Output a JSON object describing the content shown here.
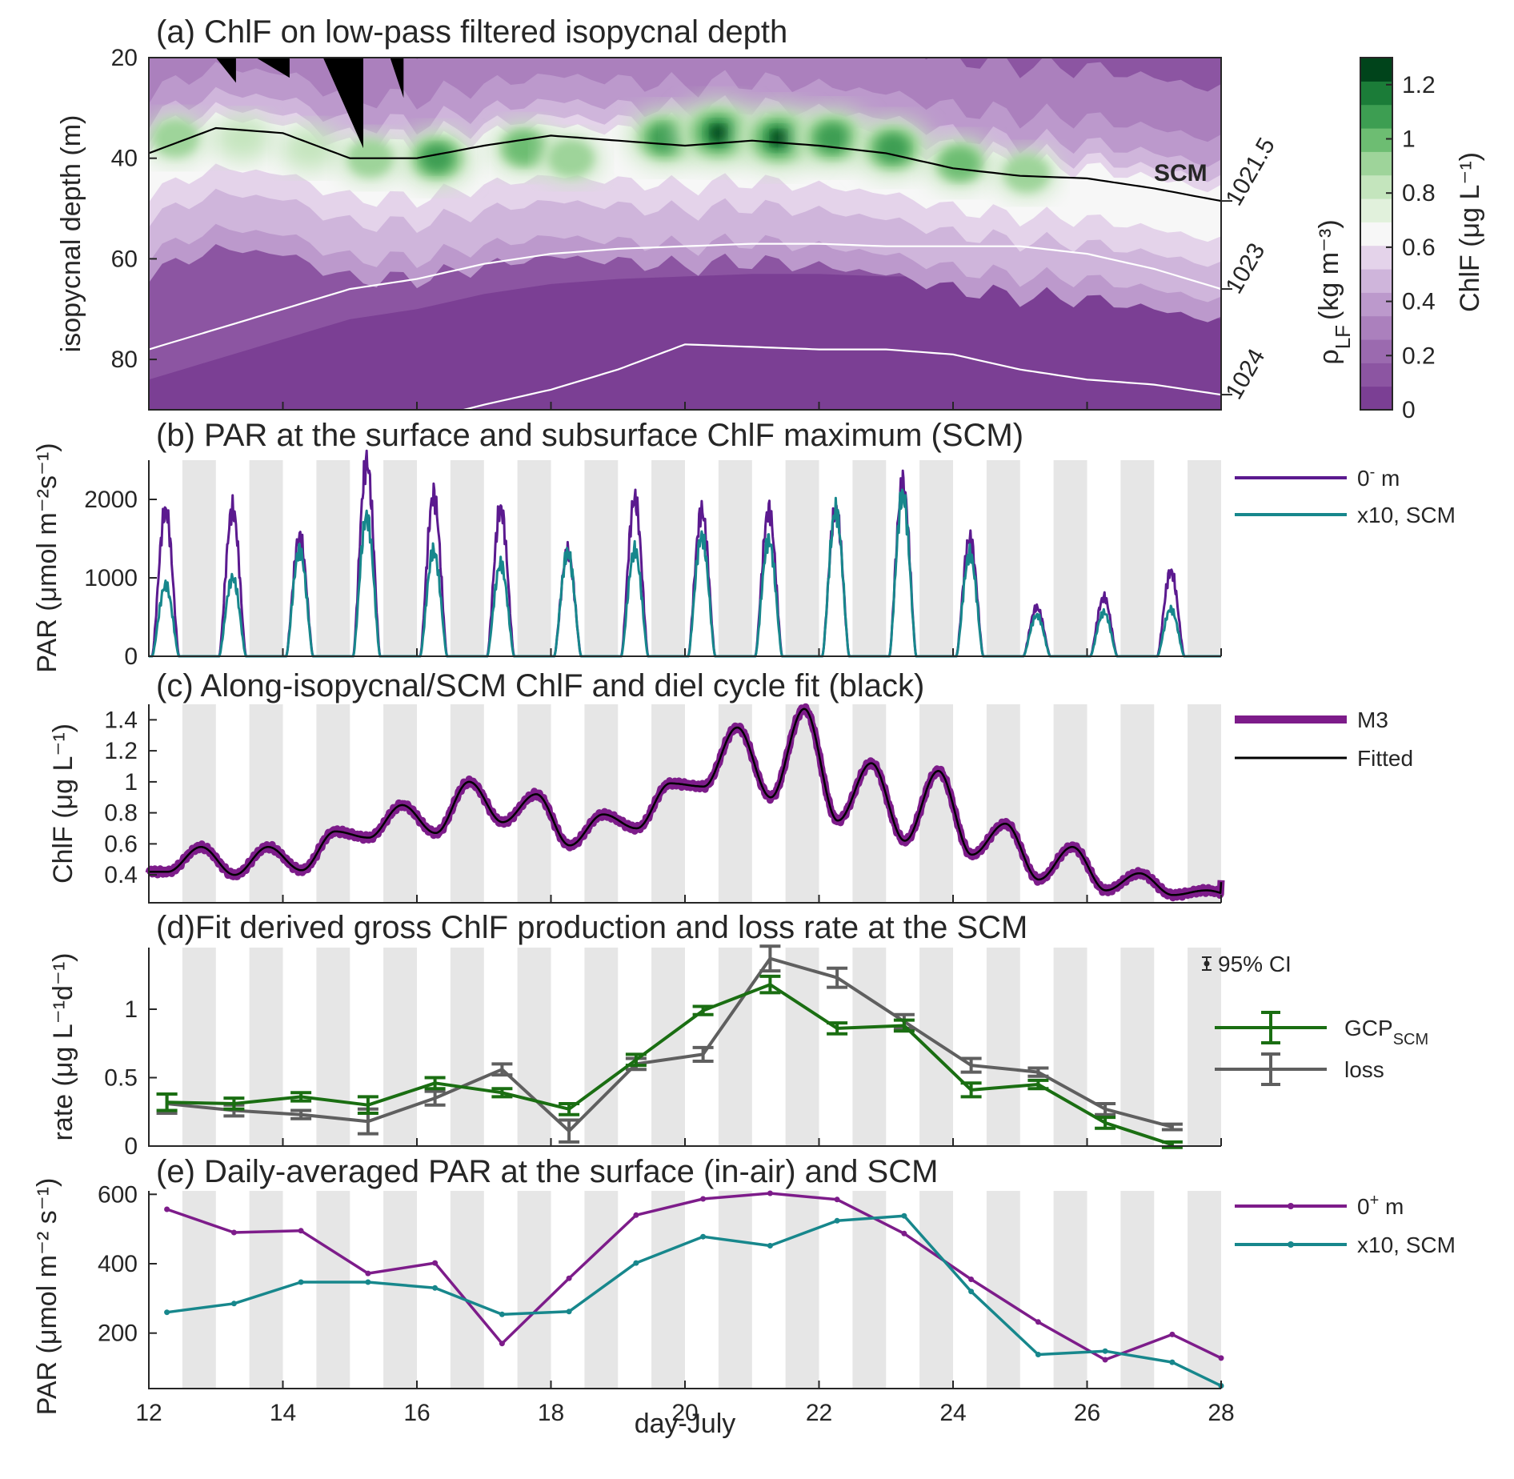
{
  "chart_data": [
    {
      "panel": "a",
      "type": "heatmap",
      "title": "(a) ChlF on low-pass filtered isopycnal depth",
      "ylabel": "isopycnal depth (m)",
      "ylim": [
        90,
        20
      ],
      "yticks": [
        "20",
        "40",
        "60",
        "80"
      ],
      "xlim": [
        12,
        28
      ],
      "colorbar": {
        "label": "ChlF (μg L⁻¹)",
        "ticks": [
          "0",
          "0.2",
          "0.4",
          "0.6",
          "0.8",
          "1",
          "1.2"
        ],
        "range": [
          0,
          1.3
        ],
        "levels": [
          "#7b3f94",
          "#8c55a2",
          "#9b6aaf",
          "#ab80bd",
          "#bc99cc",
          "#cfb5db",
          "#e4d3ea",
          "#f7f7f7",
          "#e1f1dc",
          "#c4e5bd",
          "#9ed49a",
          "#6dbd72",
          "#3d9e52",
          "#1b7c38",
          "#00441b"
        ]
      },
      "right_axis": {
        "label": "ρ_LF (kg m⁻³)",
        "label_main": "ρ",
        "label_sub": "LF",
        "label_units": "(kg m⁻³)",
        "ticks": [
          "1021.5",
          "1023",
          "1024"
        ]
      },
      "scm_label": "SCM",
      "scm_line_depth": [
        [
          12,
          39
        ],
        [
          13,
          34
        ],
        [
          14,
          35
        ],
        [
          15,
          40
        ],
        [
          16,
          40
        ],
        [
          17,
          37.5
        ],
        [
          18,
          35.5
        ],
        [
          19,
          36.5
        ],
        [
          20,
          37.5
        ],
        [
          21,
          36.5
        ],
        [
          22,
          37.5
        ],
        [
          23,
          39
        ],
        [
          24,
          42
        ],
        [
          25,
          43.5
        ],
        [
          26,
          44
        ],
        [
          27,
          46
        ],
        [
          28,
          48.5
        ]
      ],
      "isopycnal_1023_depth": [
        [
          12,
          78
        ],
        [
          13,
          74
        ],
        [
          14,
          70
        ],
        [
          15,
          66
        ],
        [
          16,
          64
        ],
        [
          17,
          61
        ],
        [
          18,
          59
        ],
        [
          19,
          58
        ],
        [
          20,
          57.5
        ],
        [
          21,
          57
        ],
        [
          22,
          57
        ],
        [
          23,
          57.5
        ],
        [
          24,
          57.5
        ],
        [
          25,
          57.5
        ],
        [
          26,
          59
        ],
        [
          27,
          62
        ],
        [
          28,
          66
        ]
      ],
      "isopycnal_1024_depth": [
        [
          16.7,
          90
        ],
        [
          17,
          89
        ],
        [
          18,
          86
        ],
        [
          19,
          82
        ],
        [
          20,
          77
        ],
        [
          21,
          77.5
        ],
        [
          22,
          78
        ],
        [
          23,
          78
        ],
        [
          24,
          79
        ],
        [
          25,
          82
        ],
        [
          26,
          84
        ],
        [
          27,
          85
        ],
        [
          28,
          87
        ]
      ],
      "chl_patch_centers": [
        [
          16.3,
          40,
          0.9
        ],
        [
          17.6,
          38,
          0.7
        ],
        [
          18.3,
          40,
          0.55
        ],
        [
          19.7,
          36,
          0.95
        ],
        [
          20.5,
          35,
          1.25
        ],
        [
          21.4,
          36,
          1.2
        ],
        [
          22.2,
          36,
          1.0
        ],
        [
          23.1,
          38,
          0.95
        ],
        [
          24.1,
          41,
          0.7
        ],
        [
          25.1,
          43,
          0.55
        ],
        [
          15.3,
          40,
          0.55
        ],
        [
          14.4,
          38,
          0.5
        ],
        [
          13.4,
          36,
          0.5
        ],
        [
          12.4,
          36,
          0.55
        ]
      ],
      "missing_data": [
        [
          13.0,
          13.3,
          20,
          25
        ],
        [
          13.6,
          14.1,
          20,
          24
        ],
        [
          14.6,
          15.2,
          20,
          38
        ],
        [
          15.6,
          15.8,
          20,
          28
        ]
      ]
    },
    {
      "panel": "b",
      "type": "line",
      "title": "(b) PAR at the surface and subsurface ChlF maximum (SCM)",
      "ylabel": "PAR (μmol m⁻²s⁻¹)",
      "ylim": [
        0,
        2500
      ],
      "yticks": [
        "0",
        "1000",
        "2000"
      ],
      "xlim": [
        12,
        28
      ],
      "series": [
        {
          "name": "0⁻ m",
          "legend_main": "0",
          "legend_sup": "-",
          "legend_rest": " m",
          "color": "#5b1a8f",
          "daily_peaks": [
            1850,
            1870,
            1520,
            2480,
            2050,
            1880,
            1330,
            2000,
            1850,
            1860,
            1880,
            2200,
            1500,
            620,
            750,
            1080
          ]
        },
        {
          "name": "x10, SCM",
          "color": "#17878c",
          "daily_peaks": [
            900,
            1000,
            1350,
            1780,
            1340,
            1170,
            1320,
            1350,
            1530,
            1480,
            1860,
            2050,
            1300,
            520,
            560,
            600
          ]
        }
      ]
    },
    {
      "panel": "c",
      "type": "line",
      "title": "(c) Along-isopycnal/SCM ChlF and diel cycle fit (black)",
      "ylabel": "ChlF (μg L⁻¹)",
      "ylim": [
        0.22,
        1.5
      ],
      "yticks": [
        "0.4",
        "0.6",
        "0.8",
        "1",
        "1.2",
        "1.4"
      ],
      "xlim": [
        12,
        28
      ],
      "series": [
        {
          "name": "M3",
          "color": "#7d1c8a"
        },
        {
          "name": "Fitted",
          "color": "#000000"
        }
      ],
      "daily_min_max": [
        [
          0.42,
          0.58
        ],
        [
          0.4,
          0.58
        ],
        [
          0.43,
          0.68
        ],
        [
          0.64,
          0.85
        ],
        [
          0.67,
          1.0
        ],
        [
          0.74,
          0.92
        ],
        [
          0.59,
          0.79
        ],
        [
          0.7,
          0.99
        ],
        [
          0.97,
          1.35
        ],
        [
          0.9,
          1.47
        ],
        [
          0.75,
          1.12
        ],
        [
          0.62,
          1.07
        ],
        [
          0.53,
          0.73
        ],
        [
          0.37,
          0.58
        ],
        [
          0.3,
          0.41
        ],
        [
          0.27,
          0.3
        ]
      ]
    },
    {
      "panel": "d",
      "type": "line",
      "title": "(d)Fit derived gross ChlF production and loss rate at the SCM",
      "ylabel": "rate (μg L⁻¹d⁻¹)",
      "ylim": [
        0,
        1.45
      ],
      "yticks": [
        "0",
        "0.5",
        "1"
      ],
      "xlim": [
        12,
        28
      ],
      "ci_label": "95% CI",
      "x": [
        12.27,
        13.27,
        14.27,
        15.27,
        16.27,
        17.27,
        18.27,
        19.27,
        20.27,
        21.27,
        22.27,
        23.27,
        24.27,
        25.27,
        26.27,
        27.27
      ],
      "series": [
        {
          "name": "GCP_SCM",
          "legend_main": "GCP",
          "legend_sub": "SCM",
          "color": "#1a6e12",
          "values": [
            0.32,
            0.31,
            0.36,
            0.3,
            0.46,
            0.39,
            0.27,
            0.63,
            0.99,
            1.18,
            0.86,
            0.88,
            0.41,
            0.45,
            0.17,
            0.01
          ],
          "ci": [
            0.06,
            0.04,
            0.03,
            0.06,
            0.04,
            0.03,
            0.04,
            0.04,
            0.03,
            0.06,
            0.04,
            0.04,
            0.05,
            0.03,
            0.04,
            0.02
          ]
        },
        {
          "name": "loss",
          "color": "#5f5f5f",
          "values": [
            0.31,
            0.26,
            0.23,
            0.18,
            0.35,
            0.56,
            0.11,
            0.6,
            0.67,
            1.37,
            1.23,
            0.91,
            0.59,
            0.54,
            0.27,
            0.14
          ],
          "ci": [
            0.07,
            0.04,
            0.03,
            0.09,
            0.05,
            0.04,
            0.08,
            0.04,
            0.05,
            0.09,
            0.07,
            0.05,
            0.05,
            0.03,
            0.04,
            0.02
          ]
        }
      ]
    },
    {
      "panel": "e",
      "type": "line",
      "title": "(e) Daily-averaged PAR at the surface (in-air) and SCM",
      "ylabel": "PAR (μmol m⁻² s⁻¹)",
      "xlabel": "day-July",
      "ylim": [
        40,
        610
      ],
      "yticks": [
        "200",
        "400",
        "600"
      ],
      "xlim": [
        12,
        28
      ],
      "xticks": [
        "12",
        "14",
        "16",
        "18",
        "20",
        "22",
        "24",
        "26",
        "28"
      ],
      "x": [
        12.27,
        13.27,
        14.27,
        15.27,
        16.27,
        17.27,
        18.27,
        19.27,
        20.27,
        21.27,
        22.27,
        23.27,
        24.27,
        25.27,
        26.27,
        27.27,
        28.0
      ],
      "series": [
        {
          "name": "0⁺ m",
          "legend_main": "0",
          "legend_sup": "+",
          "legend_rest": " m",
          "color": "#7d1c8a",
          "values": [
            557,
            490,
            495,
            372,
            402,
            170,
            358,
            540,
            587,
            603,
            585,
            487,
            355,
            232,
            123,
            196,
            128
          ]
        },
        {
          "name": "x10, SCM",
          "color": "#17878c",
          "values": [
            260,
            285,
            347,
            347,
            330,
            254,
            262,
            402,
            478,
            452,
            524,
            538,
            320,
            138,
            148,
            116,
            48
          ]
        }
      ]
    }
  ]
}
